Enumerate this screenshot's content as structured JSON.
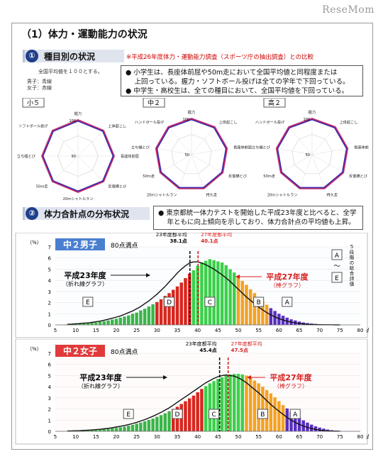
{
  "logo": "ReseMom",
  "main_title": "（1）体力・運動能力の状況",
  "section1": {
    "num": "①",
    "title": "種目別の状況",
    "note": "※平成26年度体力・運動能力調査（スポーツ庁の抽出調査）との比較",
    "avg_note": "全国平均値を１００とする。",
    "legend_boys": "男子：青線",
    "legend_girls": "女子：赤線",
    "bullets": [
      "● 小学生は、長座体前屈や50m走において全国平均値と同程度または",
      "　 上回っている。握力・ソフトボール投げは全ての学年で下回っている。",
      "● 中学生・高校生は、全ての種目において、全国平均値を下回っている。"
    ],
    "radars": [
      {
        "label": "小５",
        "axes": [
          "握力",
          "上体起こし",
          "長座体前屈",
          "反復横とび",
          "20mシャトルラン",
          "50m走",
          "立ち幅とび",
          "ソフトボール投げ"
        ],
        "ticks": [
          "100",
          "50"
        ]
      },
      {
        "label": "中２",
        "axes": [
          "握力",
          "上体起こし",
          "長座体前屈",
          "反復横とび",
          "持久走",
          "20mシャトルラン",
          "50m走",
          "立ち幅とび",
          "ハンドボール投げ"
        ],
        "ticks": [
          "100",
          "50"
        ]
      },
      {
        "label": "高２",
        "axes": [
          "握力",
          "上体起こし",
          "長座体前屈",
          "反復横とび",
          "持久走",
          "20mシャトルラン",
          "50m走",
          "立ち幅とび",
          "ハンドボール投げ"
        ],
        "ticks": [
          "100",
          "50"
        ]
      }
    ]
  },
  "section2": {
    "num": "②",
    "title": "体力合計点の分布状況",
    "bullets": [
      "● 東京都統一体力テストを開始した平成23年度と比べると、全学",
      "　 年ともに向上傾向を示しており、体力合計点の平均値も上昇。"
    ]
  },
  "colors": {
    "boys_line": "#3a2aa8",
    "girls_line": "#d0206a",
    "grade_E": "#3bb54a",
    "grade_D": "#d8261e",
    "grade_C": "#3bd04a",
    "grade_B": "#f3a224",
    "grade_A": "#5a2fc0",
    "header_boys": "#4a7fd0",
    "header_girls": "#e03a3a",
    "red_text": "#d81d1d"
  },
  "chart_data": [
    {
      "type": "bar",
      "header": "中２男子",
      "subheader": "80点満点",
      "ylabel": "（%）",
      "xunit": "点",
      "ylim": [
        0,
        7
      ],
      "yticks": [
        0,
        1,
        2,
        3,
        4,
        5,
        6,
        7
      ],
      "xticks": [
        5,
        10,
        15,
        20,
        25,
        30,
        35,
        40,
        45,
        50,
        55,
        60,
        65,
        70,
        75,
        80
      ],
      "xlim": [
        5,
        80
      ],
      "x": [
        8,
        9,
        10,
        11,
        12,
        13,
        14,
        15,
        16,
        17,
        18,
        19,
        20,
        21,
        22,
        23,
        24,
        25,
        26,
        27,
        28,
        29,
        30,
        31,
        32,
        33,
        34,
        35,
        36,
        37,
        38,
        39,
        40,
        41,
        42,
        43,
        44,
        45,
        46,
        47,
        48,
        49,
        50,
        51,
        52,
        53,
        54,
        55,
        56,
        57,
        58,
        59,
        60,
        61,
        62,
        63,
        64,
        65,
        66,
        67,
        68,
        69,
        70,
        71,
        72,
        73,
        74,
        75
      ],
      "grades": [
        "E",
        "E",
        "E",
        "E",
        "E",
        "E",
        "E",
        "E",
        "E",
        "E",
        "E",
        "E",
        "E",
        "E",
        "E",
        "E",
        "E",
        "E",
        "E",
        "E",
        "E",
        "E",
        "D",
        "D",
        "D",
        "D",
        "D",
        "D",
        "D",
        "D",
        "D",
        "C",
        "C",
        "C",
        "C",
        "C",
        "C",
        "C",
        "C",
        "C",
        "C",
        "C",
        "B",
        "B",
        "B",
        "B",
        "B",
        "B",
        "B",
        "B",
        "A",
        "A",
        "A",
        "A",
        "A",
        "A",
        "A",
        "A",
        "A",
        "A",
        "A",
        "A",
        "A",
        "A",
        "A",
        "A",
        "A",
        "A"
      ],
      "series": [
        {
          "name": "平成27年度（棒グラフ）",
          "values": [
            0.05,
            0.05,
            0.08,
            0.1,
            0.12,
            0.15,
            0.18,
            0.22,
            0.28,
            0.33,
            0.4,
            0.48,
            0.55,
            0.65,
            0.75,
            0.85,
            1.0,
            1.1,
            1.3,
            1.45,
            1.65,
            1.85,
            2.05,
            2.3,
            2.6,
            2.85,
            3.15,
            3.45,
            3.8,
            4.2,
            4.6,
            4.9,
            5.3,
            5.6,
            5.75,
            5.9,
            5.8,
            5.7,
            5.6,
            5.35,
            5.0,
            4.7,
            4.3,
            3.95,
            3.6,
            3.2,
            2.85,
            2.5,
            2.15,
            1.8,
            1.5,
            1.25,
            1.0,
            0.82,
            0.65,
            0.5,
            0.4,
            0.3,
            0.22,
            0.16,
            0.12,
            0.08,
            0.06,
            0.04,
            0.03,
            0.02,
            0.01,
            0.01
          ]
        },
        {
          "name": "平成23年度（折れ線グラフ）",
          "values": [
            0.06,
            0.07,
            0.1,
            0.12,
            0.15,
            0.18,
            0.22,
            0.28,
            0.34,
            0.42,
            0.5,
            0.6,
            0.7,
            0.8,
            0.95,
            1.1,
            1.25,
            1.45,
            1.65,
            1.9,
            2.15,
            2.45,
            2.75,
            3.1,
            3.45,
            3.85,
            4.25,
            4.65,
            5.0,
            5.3,
            5.55,
            5.65,
            5.65,
            5.55,
            5.4,
            5.2,
            5.0,
            4.75,
            4.5,
            4.2,
            3.9,
            3.55,
            3.2,
            2.85,
            2.5,
            2.2,
            1.9,
            1.6,
            1.35,
            1.1,
            0.9,
            0.72,
            0.56,
            0.44,
            0.33,
            0.25,
            0.18,
            0.13,
            0.09,
            0.06,
            0.04,
            0.03,
            0.02,
            0.01,
            0.01,
            0.01,
            0.0,
            0.0
          ]
        }
      ],
      "avg_labels": [
        {
          "label": "23年度都平均",
          "value": 38.1,
          "text": "38.1点"
        },
        {
          "label": "27年度都平均",
          "value": 40.1,
          "text": "40.1点"
        }
      ],
      "annotations": {
        "line_label": "平成23年度",
        "line_sub": "（折れ線グラフ）",
        "bar_label": "平成27年度",
        "bar_sub": "（棒グラフ）",
        "eval_vertical": "５段階の総合評価",
        "eval_top": "A",
        "eval_tilde": "～",
        "eval_bottom": "E",
        "grade_labels": [
          {
            "text": "E",
            "x": 13
          },
          {
            "text": "D",
            "x": 33
          },
          {
            "text": "C",
            "x": 43
          },
          {
            "text": "B",
            "x": 55
          },
          {
            "text": "A",
            "x": 62
          }
        ]
      }
    },
    {
      "type": "bar",
      "header": "中２女子",
      "subheader": "80点満点",
      "ylabel": "（%）",
      "xunit": "点",
      "ylim": [
        0,
        7
      ],
      "yticks": [
        0,
        1,
        2,
        3,
        4,
        5,
        6,
        7
      ],
      "xticks": [
        5,
        10,
        15,
        20,
        25,
        30,
        35,
        40,
        45,
        50,
        55,
        60,
        65,
        70,
        75,
        80
      ],
      "xlim": [
        5,
        80
      ],
      "x": [
        8,
        9,
        10,
        11,
        12,
        13,
        14,
        15,
        16,
        17,
        18,
        19,
        20,
        21,
        22,
        23,
        24,
        25,
        26,
        27,
        28,
        29,
        30,
        31,
        32,
        33,
        34,
        35,
        36,
        37,
        38,
        39,
        40,
        41,
        42,
        43,
        44,
        45,
        46,
        47,
        48,
        49,
        50,
        51,
        52,
        53,
        54,
        55,
        56,
        57,
        58,
        59,
        60,
        61,
        62,
        63,
        64,
        65,
        66,
        67,
        68,
        69,
        70,
        71,
        72,
        73,
        74,
        75
      ],
      "grades": [
        "E",
        "E",
        "E",
        "E",
        "E",
        "E",
        "E",
        "E",
        "E",
        "E",
        "E",
        "E",
        "E",
        "E",
        "E",
        "E",
        "E",
        "E",
        "E",
        "E",
        "E",
        "E",
        "E",
        "E",
        "E",
        "E",
        "D",
        "D",
        "D",
        "D",
        "D",
        "D",
        "D",
        "D",
        "C",
        "C",
        "C",
        "C",
        "C",
        "C",
        "C",
        "C",
        "C",
        "C",
        "B",
        "B",
        "B",
        "B",
        "B",
        "B",
        "B",
        "B",
        "B",
        "B",
        "A",
        "A",
        "A",
        "A",
        "A",
        "A",
        "A",
        "A",
        "A",
        "A",
        "A",
        "A",
        "A",
        "A"
      ],
      "series": [
        {
          "name": "平成27年度（棒グラフ）",
          "values": [
            0.02,
            0.03,
            0.04,
            0.05,
            0.06,
            0.08,
            0.1,
            0.12,
            0.15,
            0.18,
            0.22,
            0.26,
            0.3,
            0.36,
            0.42,
            0.5,
            0.58,
            0.68,
            0.78,
            0.9,
            1.02,
            1.15,
            1.3,
            1.45,
            1.62,
            1.8,
            2.0,
            2.2,
            2.45,
            2.7,
            2.95,
            3.2,
            3.5,
            3.8,
            4.05,
            4.3,
            4.5,
            4.7,
            4.85,
            5.0,
            5.1,
            5.15,
            5.15,
            5.1,
            5.0,
            4.8,
            4.55,
            4.3,
            4.0,
            3.7,
            3.4,
            3.05,
            2.7,
            2.35,
            2.05,
            1.75,
            1.45,
            1.2,
            0.98,
            0.78,
            0.6,
            0.45,
            0.33,
            0.24,
            0.16,
            0.1,
            0.06,
            0.03
          ]
        },
        {
          "name": "平成23年度（折れ線グラフ）",
          "values": [
            0.03,
            0.04,
            0.05,
            0.06,
            0.08,
            0.1,
            0.12,
            0.15,
            0.18,
            0.22,
            0.27,
            0.32,
            0.38,
            0.45,
            0.52,
            0.6,
            0.7,
            0.8,
            0.92,
            1.05,
            1.2,
            1.35,
            1.52,
            1.7,
            1.9,
            2.1,
            2.35,
            2.6,
            2.85,
            3.1,
            3.35,
            3.6,
            3.85,
            4.1,
            4.35,
            4.55,
            4.75,
            4.9,
            5.0,
            5.05,
            5.0,
            4.95,
            4.8,
            4.6,
            4.35,
            4.05,
            3.75,
            3.45,
            3.1,
            2.75,
            2.4,
            2.1,
            1.8,
            1.52,
            1.25,
            1.0,
            0.8,
            0.62,
            0.47,
            0.35,
            0.25,
            0.17,
            0.11,
            0.07,
            0.04,
            0.02,
            0.01,
            0.01
          ]
        }
      ],
      "avg_labels": [
        {
          "label": "23年度都平均",
          "value": 45.4,
          "text": "45.4点"
        },
        {
          "label": "27年度都平均",
          "value": 47.5,
          "text": "47.5点"
        }
      ],
      "annotations": {
        "line_label": "平成23年度",
        "line_sub": "（折れ線グラフ）",
        "bar_label": "平成27年度",
        "bar_sub": "（棒グラフ）",
        "grade_labels": [
          {
            "text": "E",
            "x": 23
          },
          {
            "text": "D",
            "x": 35
          },
          {
            "text": "C",
            "x": 44
          },
          {
            "text": "B",
            "x": 56
          },
          {
            "text": "A",
            "x": 64
          }
        ]
      }
    }
  ]
}
